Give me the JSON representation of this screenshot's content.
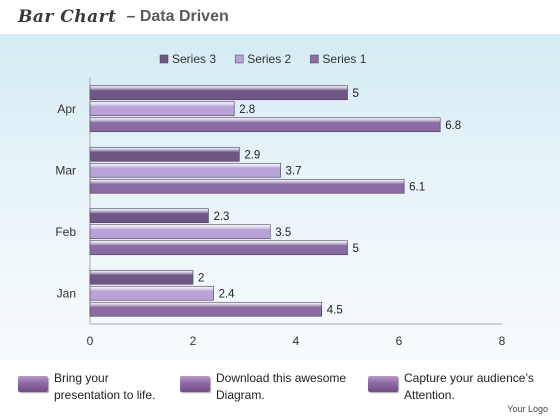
{
  "header": {
    "title": "Bar Chart",
    "subtitle": "– Data Driven"
  },
  "chart_data": {
    "type": "bar",
    "orientation": "horizontal",
    "categories": [
      "Jan",
      "Feb",
      "Mar",
      "Apr"
    ],
    "series": [
      {
        "name": "Series 1",
        "values": [
          4.5,
          5,
          6.1,
          6.8
        ],
        "color": "#8a6ca3"
      },
      {
        "name": "Series 2",
        "values": [
          2.4,
          3.5,
          3.7,
          2.8
        ],
        "color": "#b9a2d6"
      },
      {
        "name": "Series 3",
        "values": [
          2,
          2.3,
          2.9,
          5
        ],
        "color": "#6e5685"
      }
    ],
    "xlim": [
      0,
      8
    ],
    "xticks": [
      0,
      2,
      4,
      6,
      8
    ],
    "legend_order": [
      "Series 3",
      "Series 2",
      "Series 1"
    ],
    "legend_position": "top",
    "title": "",
    "xlabel": "",
    "ylabel": "",
    "grid": false
  },
  "footer": {
    "notes": [
      {
        "text": "Bring your\npresentation to life."
      },
      {
        "text": "Download this awesome\nDiagram."
      },
      {
        "text": "Capture your audience’s\nAttention."
      }
    ],
    "logo": "Your Logo"
  }
}
